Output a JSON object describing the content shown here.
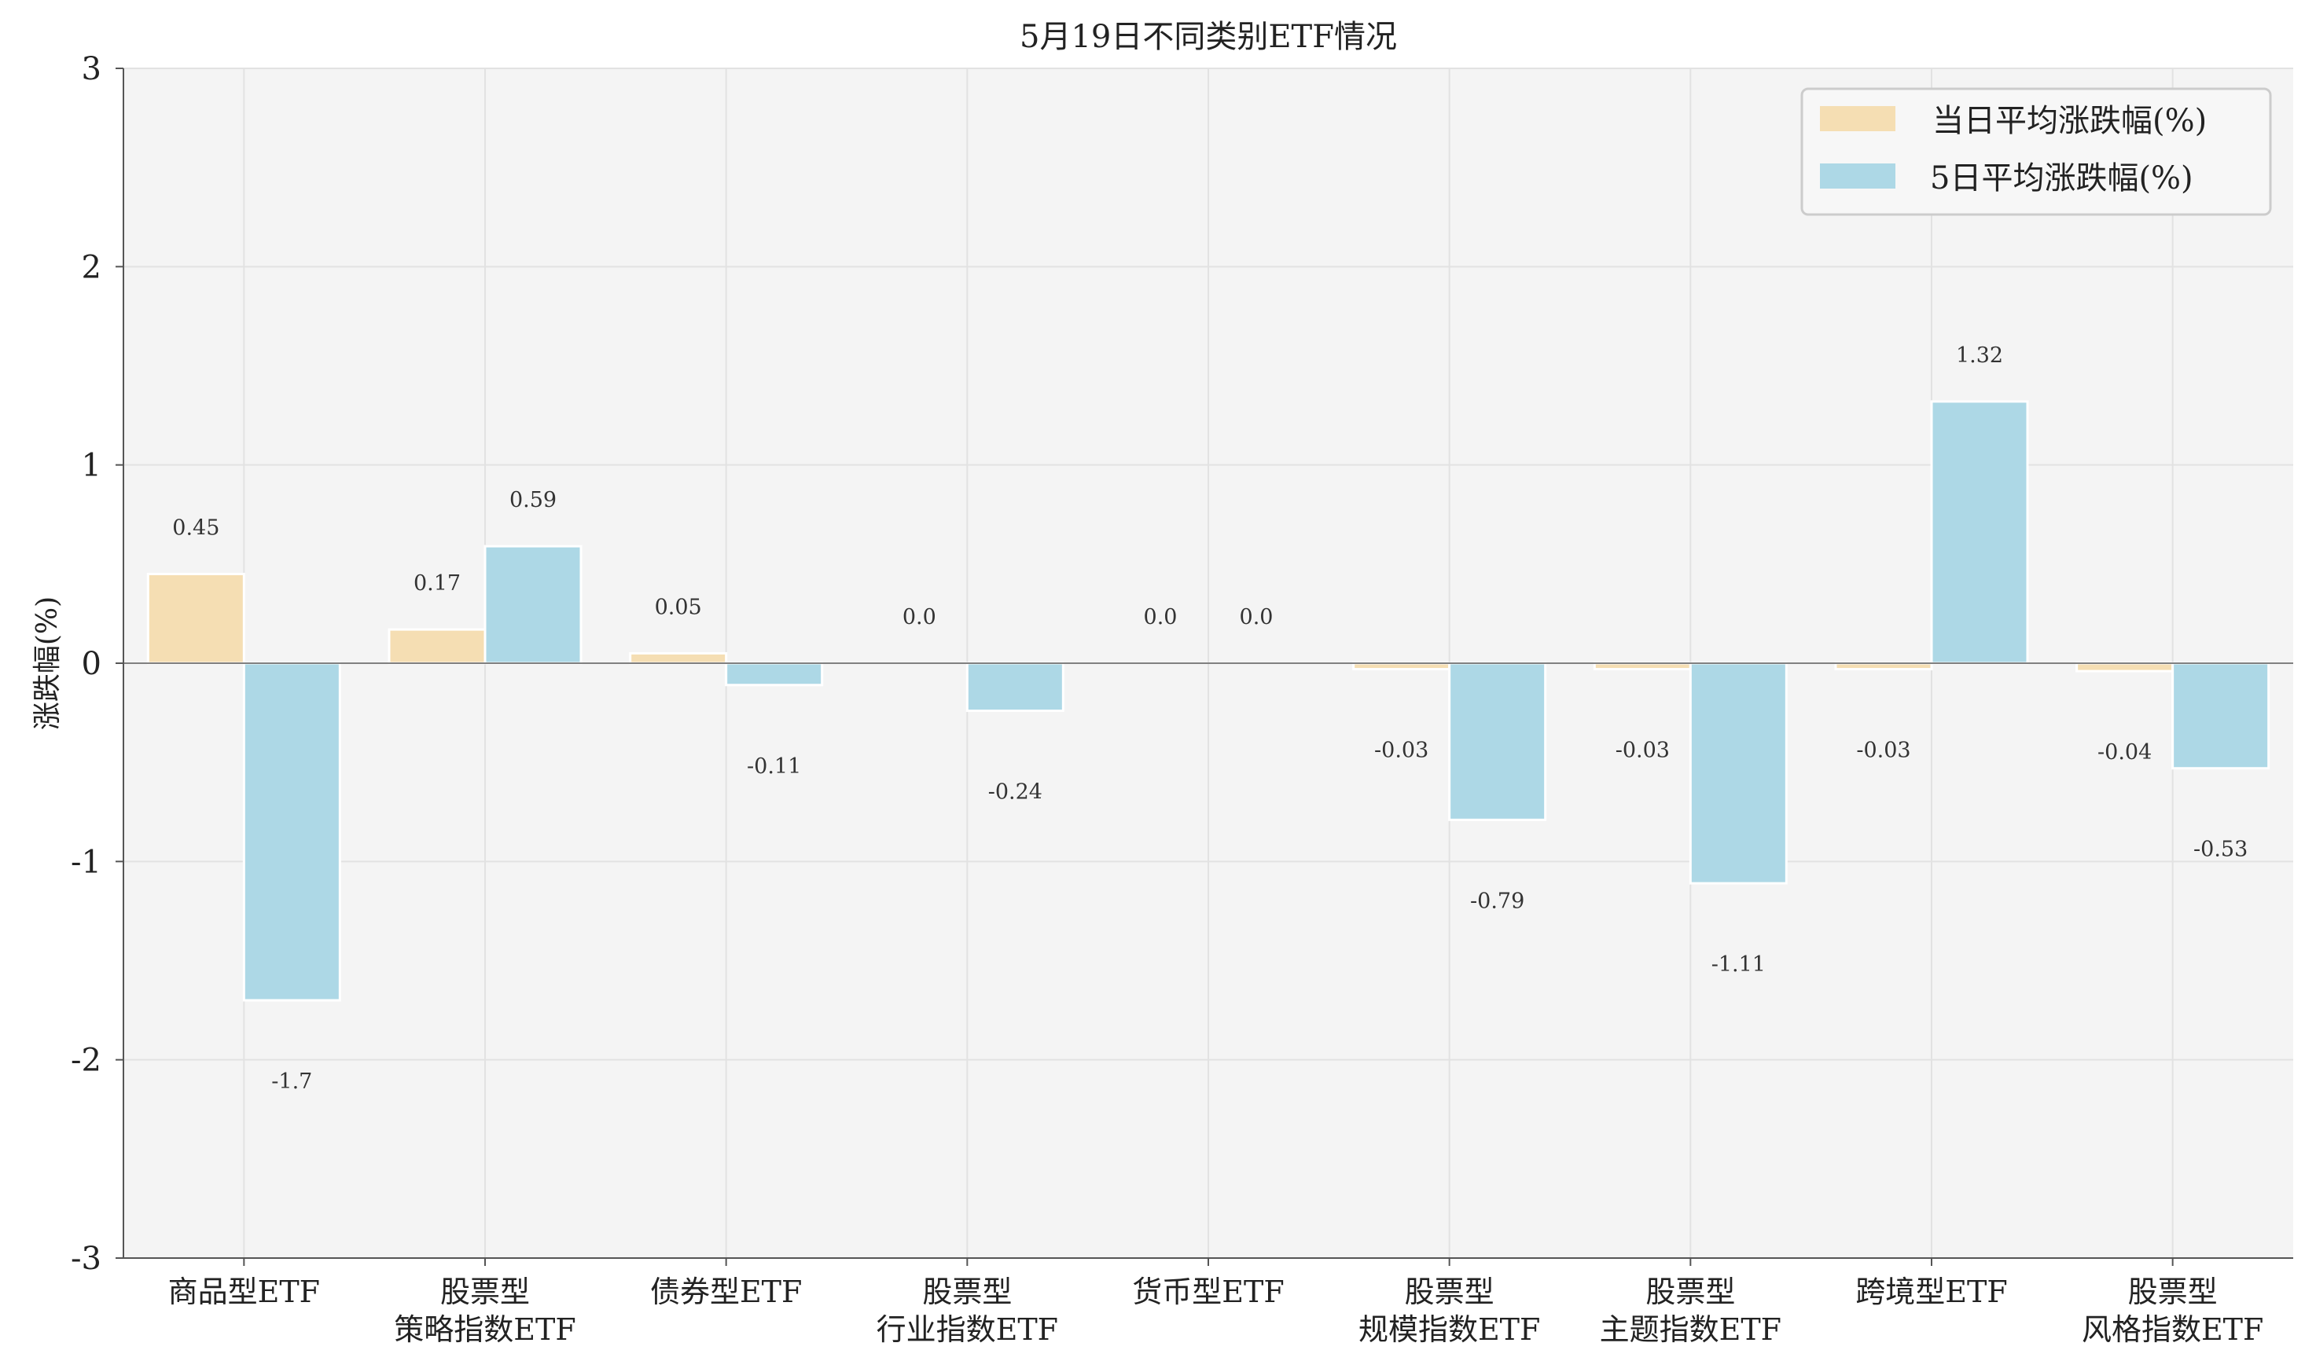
{
  "chart_data": {
    "type": "bar",
    "title": "5月19日不同类别ETF情况",
    "xlabel": "",
    "ylabel": "涨跌幅(%)",
    "ylim": [
      -3,
      3
    ],
    "yticks": [
      3,
      2,
      1,
      0,
      -1,
      -2,
      -3
    ],
    "categories": [
      [
        "商品型ETF"
      ],
      [
        "股票型",
        "策略指数ETF"
      ],
      [
        "债券型ETF"
      ],
      [
        "股票型",
        "行业指数ETF"
      ],
      [
        "货币型ETF"
      ],
      [
        "股票型",
        "规模指数ETF"
      ],
      [
        "股票型",
        "主题指数ETF"
      ],
      [
        "跨境型ETF"
      ],
      [
        "股票型",
        "风格指数ETF"
      ]
    ],
    "series": [
      {
        "name": "当日平均涨跌幅(%)",
        "color": "#f5deb3",
        "values": [
          0.45,
          0.17,
          0.05,
          0.0,
          0.0,
          -0.03,
          -0.03,
          -0.03,
          -0.04
        ]
      },
      {
        "name": "5日平均涨跌幅(%)",
        "color": "#add8e6",
        "values": [
          -1.7,
          0.59,
          -0.11,
          -0.24,
          0.0,
          -0.79,
          -1.11,
          1.32,
          -0.53
        ]
      }
    ],
    "data_labels": [
      [
        "0.45",
        "0.17",
        "0.05",
        "0.0",
        "0.0",
        "-0.03",
        "-0.03",
        "-0.03",
        "-0.04"
      ],
      [
        "-1.7",
        "0.59",
        "-0.11",
        "-0.24",
        "0.0",
        "-0.79",
        "-1.11",
        "1.32",
        "-0.53"
      ]
    ],
    "grid": true,
    "legend_position": "top-right",
    "colors": {
      "plot_bg": "#f4f4f4",
      "grid": "#e2e2e2",
      "axis": "#555555",
      "zero_line": "#808080"
    }
  }
}
